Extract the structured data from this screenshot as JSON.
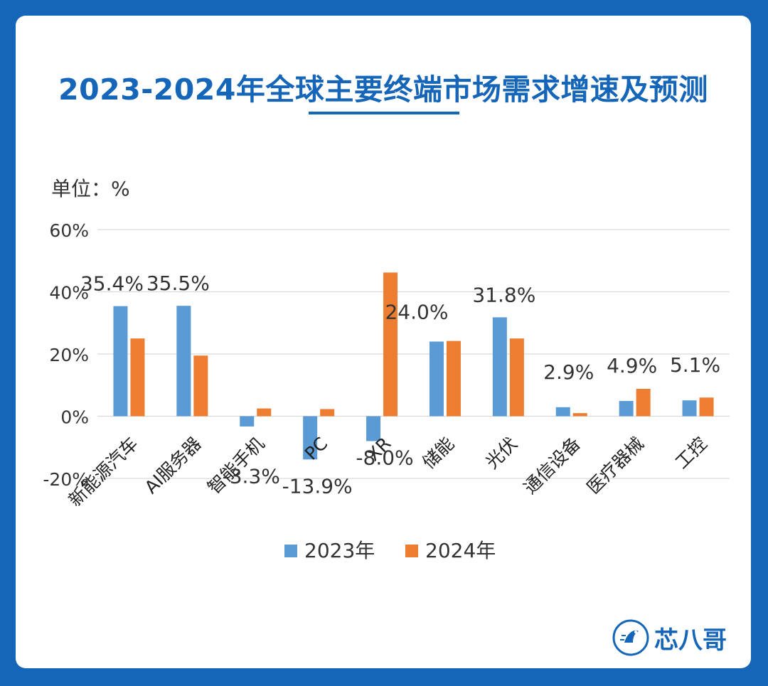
{
  "header": {
    "title": "2023-2024年全球主要终端市场需求增速及预测",
    "unit_label": "单位：%"
  },
  "brand": {
    "name": "芯八哥",
    "icon": "bird-logo-icon"
  },
  "colors": {
    "accent": "#1565b8",
    "series_2023": "#5b9bd5",
    "series_2024": "#ed7d31"
  },
  "chart_data": {
    "type": "bar",
    "title": "2023-2024年全球主要终端市场需求增速及预测",
    "ylabel": "单位：%",
    "ylim": [
      -20,
      60
    ],
    "yticks": [
      "60%",
      "40%",
      "20%",
      "0%",
      "-20%"
    ],
    "ytick_values": [
      60,
      40,
      20,
      0,
      -20
    ],
    "grid": true,
    "legend": "bottom",
    "categories": [
      "新能源汽车",
      "AI服务器",
      "智能手机",
      "PC",
      "XR",
      "储能",
      "光伏",
      "通信设备",
      "医疗器械",
      "工控"
    ],
    "series": [
      {
        "name": "2023年",
        "values": [
          35.4,
          35.5,
          -3.3,
          -13.9,
          -8.0,
          24.0,
          31.8,
          2.9,
          4.9,
          5.1
        ]
      },
      {
        "name": "2024年",
        "values": [
          25.0,
          19.5,
          2.5,
          2.3,
          46.2,
          24.2,
          25.0,
          1.0,
          8.8,
          6.0
        ]
      }
    ],
    "data_labels": [
      "35.4%",
      "35.5%",
      "-3.3%",
      "-13.9%",
      "-8.0%",
      "24.0%",
      "31.8%",
      "2.9%",
      "4.9%",
      "5.1%"
    ]
  }
}
